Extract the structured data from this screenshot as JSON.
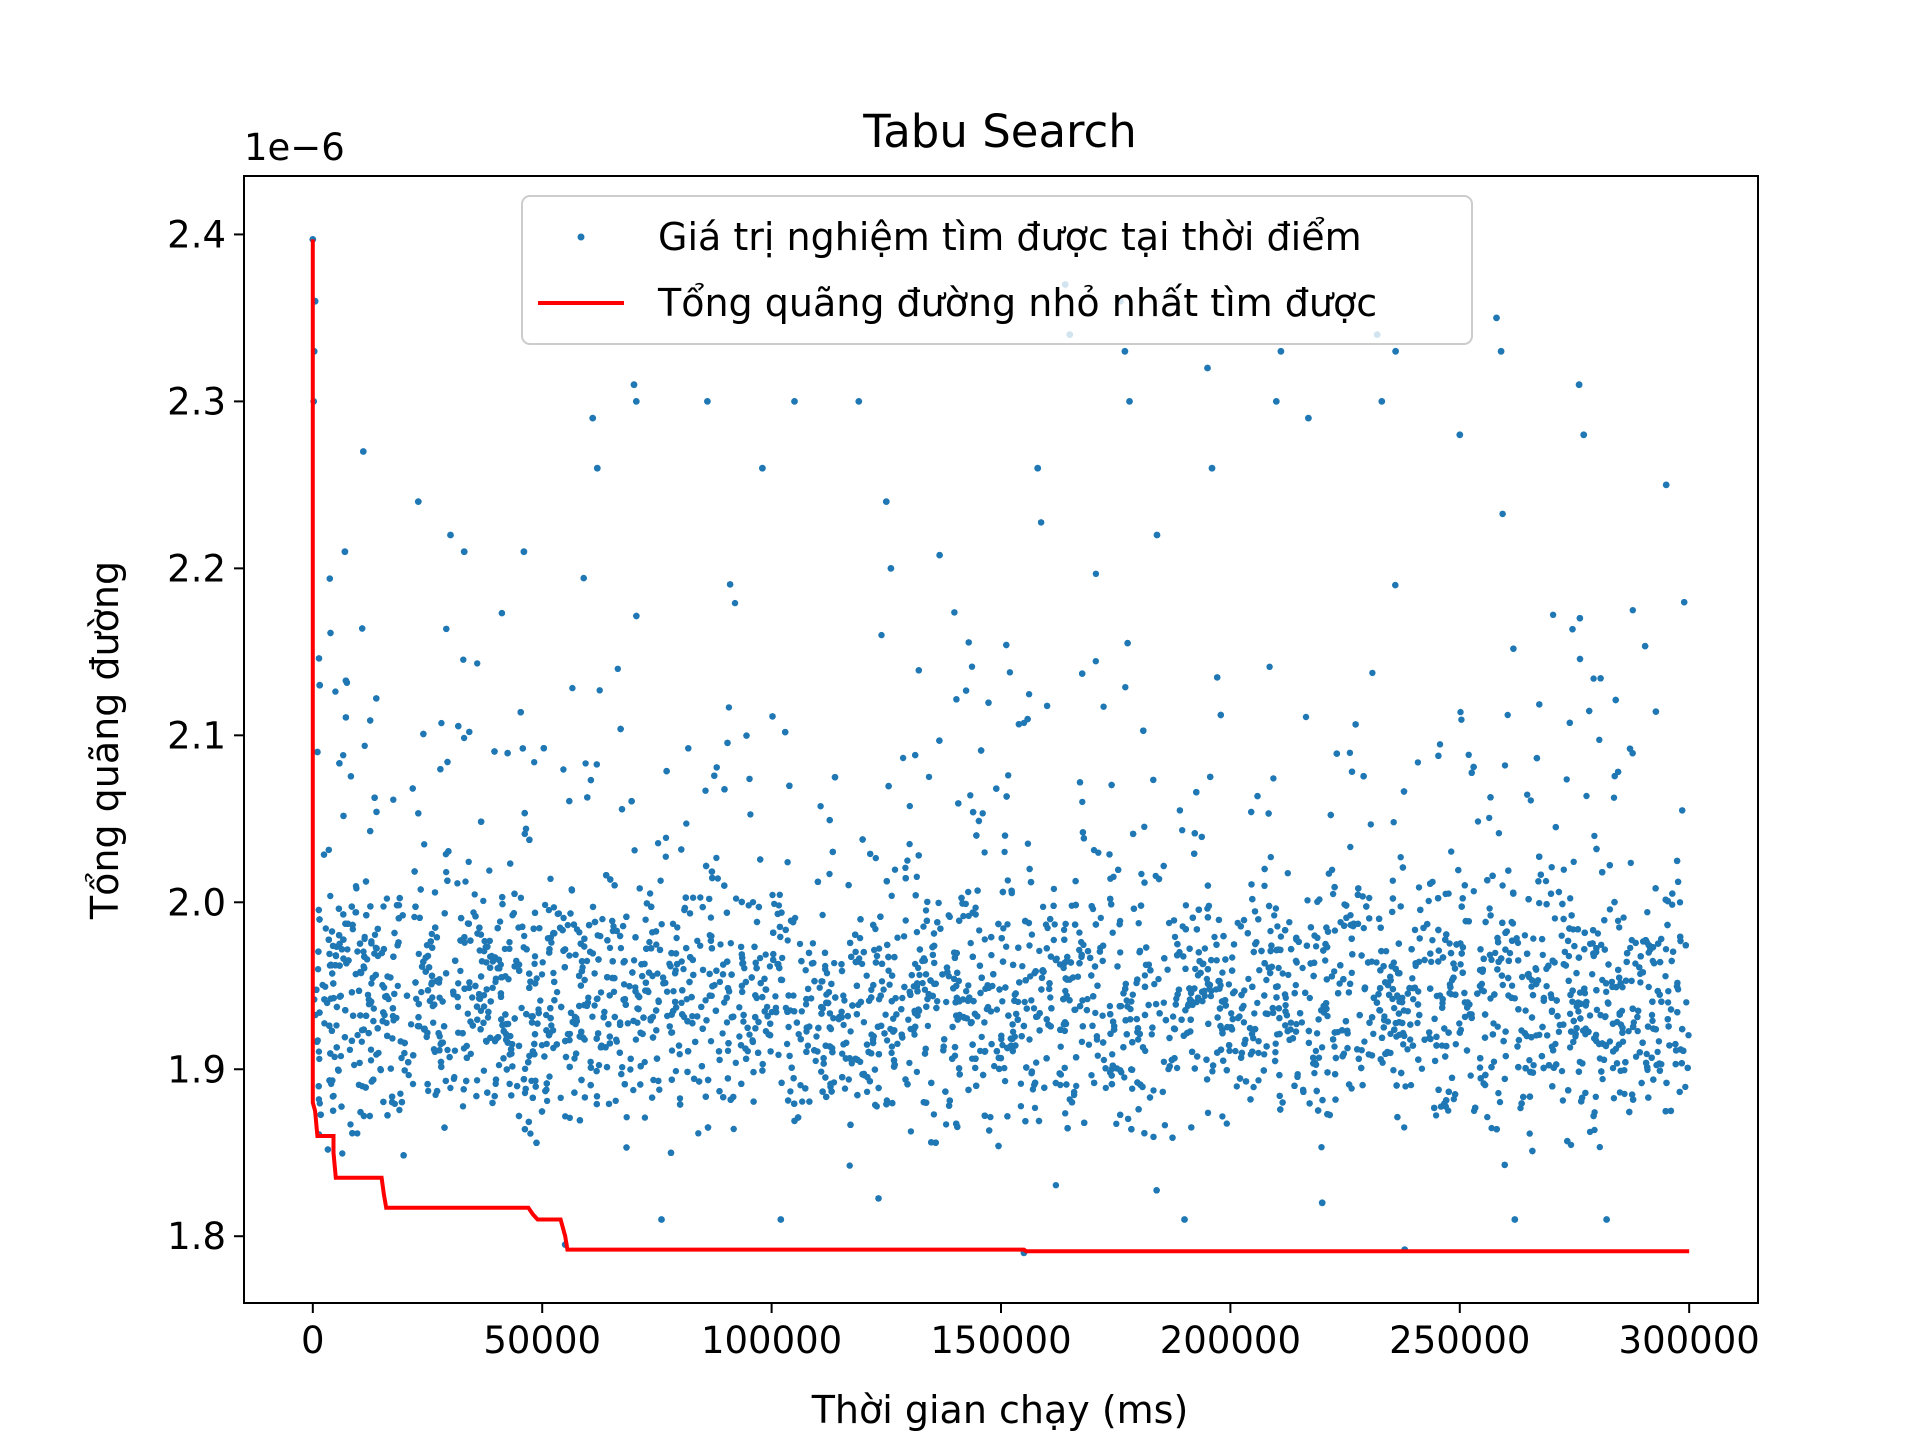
{
  "chart_data": {
    "type": "scatter",
    "title": "Tabu Search",
    "xlabel": "Thời gian chạy (ms)",
    "ylabel": "Tổng quãng đường",
    "y_offset_label": "1e−6",
    "xlim": [
      -15000,
      315000
    ],
    "ylim": [
      1.76,
      2.435
    ],
    "x_ticks": [
      0,
      50000,
      100000,
      150000,
      200000,
      250000,
      300000
    ],
    "x_tick_labels": [
      "0",
      "50000",
      "100000",
      "150000",
      "200000",
      "250000",
      "300000"
    ],
    "y_ticks": [
      1.8,
      1.9,
      2.0,
      2.1,
      2.2,
      2.3,
      2.4
    ],
    "y_tick_labels": [
      "1.8",
      "1.9",
      "2.0",
      "2.1",
      "2.2",
      "2.3",
      "2.4"
    ],
    "grid": false,
    "legend_position": "top-center",
    "series": [
      {
        "name": "Giá trị nghiệm tìm được tại thời điểm",
        "type": "scatter",
        "color": "#1f77b4",
        "x_range": [
          0,
          300000
        ],
        "typical_band": [
          1.86,
          2.02
        ],
        "points": [
          [
            0,
            2.397
          ],
          [
            500,
            2.36
          ],
          [
            300,
            2.33
          ],
          [
            200,
            2.3
          ],
          [
            1500,
            2.13
          ],
          [
            1000,
            2.09
          ],
          [
            11000,
            2.27
          ],
          [
            7000,
            2.21
          ],
          [
            23000,
            2.24
          ],
          [
            30000,
            2.22
          ],
          [
            33000,
            2.21
          ],
          [
            46000,
            2.21
          ],
          [
            61000,
            2.29
          ],
          [
            62000,
            2.26
          ],
          [
            70000,
            2.31
          ],
          [
            70500,
            2.3
          ],
          [
            86000,
            2.3
          ],
          [
            98000,
            2.26
          ],
          [
            105000,
            2.3
          ],
          [
            119000,
            2.3
          ],
          [
            125000,
            2.24
          ],
          [
            126000,
            2.2
          ],
          [
            158000,
            2.26
          ],
          [
            164000,
            2.37
          ],
          [
            165000,
            2.34
          ],
          [
            176000,
            2.36
          ],
          [
            177000,
            2.33
          ],
          [
            178000,
            2.3
          ],
          [
            184000,
            2.22
          ],
          [
            195000,
            2.32
          ],
          [
            196000,
            2.26
          ],
          [
            210000,
            2.3
          ],
          [
            211000,
            2.33
          ],
          [
            217000,
            2.29
          ],
          [
            232000,
            2.34
          ],
          [
            233000,
            2.3
          ],
          [
            236000,
            2.33
          ],
          [
            250000,
            2.28
          ],
          [
            258000,
            2.35
          ],
          [
            259000,
            2.33
          ],
          [
            276000,
            2.31
          ],
          [
            277000,
            2.28
          ],
          [
            295000,
            2.25
          ],
          [
            155000,
            1.79
          ],
          [
            238000,
            1.792
          ],
          [
            55000,
            1.795
          ],
          [
            76000,
            1.81
          ],
          [
            102000,
            1.81
          ],
          [
            190000,
            1.81
          ],
          [
            220000,
            1.82
          ],
          [
            262000,
            1.81
          ],
          [
            282000,
            1.81
          ]
        ]
      },
      {
        "name": "Tổng quãng đường nhỏ nhất tìm được",
        "type": "step",
        "color": "#ff0000",
        "points": [
          [
            0,
            2.397
          ],
          [
            0,
            1.88
          ],
          [
            500,
            1.875
          ],
          [
            1000,
            1.86
          ],
          [
            4500,
            1.86
          ],
          [
            4500,
            1.85
          ],
          [
            5000,
            1.835
          ],
          [
            15000,
            1.835
          ],
          [
            15500,
            1.825
          ],
          [
            16000,
            1.817
          ],
          [
            47000,
            1.817
          ],
          [
            48000,
            1.813
          ],
          [
            49000,
            1.81
          ],
          [
            54000,
            1.81
          ],
          [
            55000,
            1.8
          ],
          [
            55500,
            1.792
          ],
          [
            155000,
            1.792
          ],
          [
            155500,
            1.791
          ],
          [
            300000,
            1.791
          ]
        ]
      }
    ]
  }
}
